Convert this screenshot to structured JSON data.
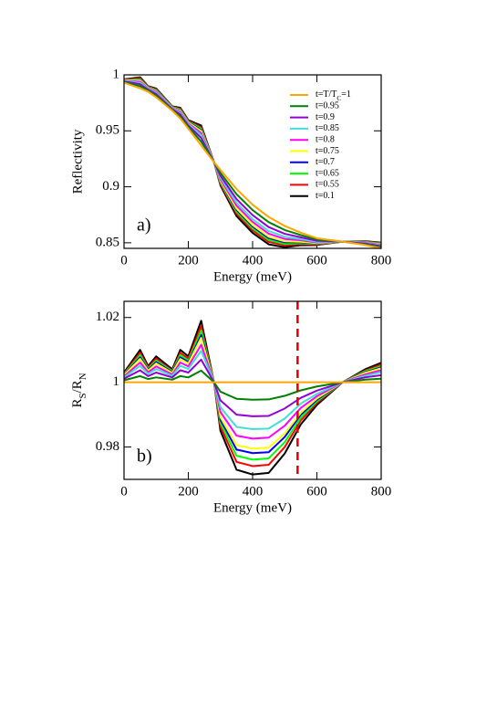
{
  "chart_data": [
    {
      "type": "line",
      "annotation": "a)",
      "xlabel": "Energy (meV)",
      "ylabel": "Reflectivity",
      "xlim": [
        0,
        800
      ],
      "ylim": [
        0.845,
        1
      ],
      "xticks": [
        0,
        200,
        400,
        600,
        800
      ],
      "yticks": [
        0.85,
        0.9,
        0.95,
        1
      ],
      "legend": "upper right",
      "x": [
        0,
        50,
        75,
        100,
        150,
        175,
        200,
        240,
        280,
        300,
        350,
        400,
        450,
        500,
        550,
        600,
        680,
        750,
        800
      ],
      "series": [
        {
          "name": [
            "t=T/T",
            "C",
            "=1"
          ],
          "color": "#ffa500",
          "values": [
            0.993,
            0.988,
            0.985,
            0.98,
            0.968,
            0.961,
            0.952,
            0.937,
            0.922,
            0.915,
            0.898,
            0.884,
            0.873,
            0.865,
            0.859,
            0.854,
            0.851,
            0.848,
            0.845
          ]
        },
        {
          "name": "t=0.95",
          "color": "#008000",
          "values": [
            0.9936,
            0.9899,
            0.9859,
            0.9815,
            0.9687,
            0.9628,
            0.9534,
            0.9404,
            0.922,
            0.9124,
            0.8934,
            0.8792,
            0.8684,
            0.8614,
            0.8569,
            0.8529,
            0.851,
            0.8486,
            0.846
          ]
        },
        {
          "name": "t=0.9",
          "color": "#9400d3",
          "values": [
            0.9941,
            0.9917,
            0.9868,
            0.9829,
            0.9694,
            0.9646,
            0.9548,
            0.9436,
            0.922,
            0.9099,
            0.889,
            0.8747,
            0.864,
            0.858,
            0.8549,
            0.8518,
            0.851,
            0.8493,
            0.8469
          ]
        },
        {
          "name": "t=0.85",
          "color": "#40e0d0",
          "values": [
            0.9945,
            0.993,
            0.9875,
            0.984,
            0.97,
            0.9659,
            0.9559,
            0.9461,
            0.922,
            0.908,
            0.8857,
            0.8711,
            0.8606,
            0.8553,
            0.8533,
            0.8509,
            0.851,
            0.8497,
            0.8476
          ]
        },
        {
          "name": "t=0.8",
          "color": "#ff00ff",
          "values": [
            0.9948,
            0.994,
            0.988,
            0.9848,
            0.9704,
            0.9669,
            0.9566,
            0.9479,
            0.922,
            0.9066,
            0.8832,
            0.8686,
            0.8581,
            0.8534,
            0.8522,
            0.8503,
            0.851,
            0.8501,
            0.8481
          ]
        },
        {
          "name": "t=0.75",
          "color": "#ffff00",
          "values": [
            0.9952,
            0.9951,
            0.9885,
            0.9856,
            0.9708,
            0.9679,
            0.9575,
            0.9498,
            0.922,
            0.9051,
            0.8806,
            0.8659,
            0.8554,
            0.8513,
            0.8509,
            0.8497,
            0.851,
            0.8504,
            0.8487
          ]
        },
        {
          "name": "t=0.7",
          "color": "#0000ff",
          "values": [
            0.9953,
            0.9956,
            0.9888,
            0.986,
            0.971,
            0.9684,
            0.9579,
            0.9507,
            0.922,
            0.9045,
            0.8794,
            0.8646,
            0.8542,
            0.8504,
            0.8504,
            0.8494,
            0.851,
            0.8506,
            0.8489
          ]
        },
        {
          "name": "t=0.65",
          "color": "#00ff00",
          "values": [
            0.9955,
            0.9963,
            0.9891,
            0.9866,
            0.9713,
            0.9691,
            0.9584,
            0.952,
            0.922,
            0.9035,
            0.8777,
            0.8628,
            0.8525,
            0.849,
            0.8496,
            0.849,
            0.851,
            0.8509,
            0.8493
          ]
        },
        {
          "name": "t=0.55",
          "color": "#ff0000",
          "values": [
            0.9957,
            0.997,
            0.9895,
            0.9871,
            0.9715,
            0.9697,
            0.9589,
            0.9532,
            0.922,
            0.9025,
            0.876,
            0.8611,
            0.8508,
            0.8477,
            0.8488,
            0.8485,
            0.851,
            0.8511,
            0.8496
          ]
        },
        {
          "name": "t=0.1",
          "color": "#000000",
          "values": [
            0.996,
            0.9979,
            0.9899,
            0.9878,
            0.9719,
            0.9706,
            0.9596,
            0.9548,
            0.922,
            0.9013,
            0.8738,
            0.8588,
            0.8486,
            0.846,
            0.8478,
            0.848,
            0.851,
            0.8514,
            0.8501
          ]
        }
      ]
    },
    {
      "type": "line",
      "annotation": "b)",
      "xlabel": "Energy (meV)",
      "ylabel": [
        "R",
        "S",
        "/R",
        "N"
      ],
      "xlim": [
        0,
        800
      ],
      "ylim": [
        0.97,
        1.025
      ],
      "xticks": [
        0,
        200,
        400,
        600,
        800
      ],
      "yticks": [
        0.98,
        1,
        1.02
      ],
      "vline": 540,
      "vline_color": "#e00000",
      "x": [
        0,
        50,
        75,
        100,
        150,
        175,
        200,
        240,
        280,
        300,
        350,
        400,
        450,
        500,
        550,
        600,
        680,
        750,
        800
      ],
      "series": [
        {
          "color": "#ffa500",
          "values": [
            1,
            1,
            1,
            1,
            1,
            1,
            1,
            1,
            1,
            1,
            1,
            1,
            1,
            1,
            1,
            1,
            1,
            1,
            1
          ]
        },
        {
          "color": "#008000",
          "values": [
            1.0006,
            1.0019,
            1.001,
            1.0015,
            1.0008,
            1.0019,
            1.0015,
            1.0036,
            1,
            0.9971,
            0.9949,
            0.9946,
            0.9947,
            0.9958,
            0.9975,
            0.9987,
            1,
            1.0008,
            1.0011
          ]
        },
        {
          "color": "#9400d3",
          "values": [
            1.0011,
            1.0037,
            1.0019,
            1.003,
            1.0015,
            1.0037,
            1.003,
            1.007,
            1,
            0.9944,
            0.99,
            0.9895,
            0.9896,
            0.9919,
            0.9952,
            0.9974,
            1,
            1.0015,
            1.0022
          ]
        },
        {
          "color": "#40e0d0",
          "values": [
            1.0015,
            1.0051,
            1.0026,
            1.0041,
            1.002,
            1.0051,
            1.0041,
            1.0097,
            1,
            0.9923,
            0.9862,
            0.9855,
            0.9857,
            0.9888,
            0.9934,
            0.9964,
            1,
            1.002,
            1.0031
          ]
        },
        {
          "color": "#ff00ff",
          "values": [
            1.0018,
            1.0061,
            1.0031,
            1.0049,
            1.0024,
            1.0061,
            1.0049,
            1.0116,
            1,
            0.9908,
            0.9835,
            0.9826,
            0.9829,
            0.9866,
            0.9921,
            0.9957,
            1,
            1.0024,
            1.0037
          ]
        },
        {
          "color": "#ffff00",
          "values": [
            1.0022,
            1.0072,
            1.0036,
            1.0058,
            1.0029,
            1.0072,
            1.0058,
            1.0137,
            1,
            0.9892,
            0.9806,
            0.9795,
            0.9798,
            0.9842,
            0.9906,
            0.995,
            1,
            1.0029,
            1.0043
          ]
        },
        {
          "color": "#0000ff",
          "values": [
            1.0023,
            1.0077,
            1.0039,
            1.0062,
            1.0031,
            1.0077,
            1.0062,
            1.0146,
            1,
            0.9884,
            0.9792,
            0.9781,
            0.9784,
            0.9831,
            0.99,
            0.9946,
            1,
            1.0031,
            1.0046
          ]
        },
        {
          "color": "#00ff00",
          "values": [
            1.0025,
            1.0084,
            1.0042,
            1.0067,
            1.0034,
            1.0084,
            1.0067,
            1.016,
            1,
            0.9874,
            0.9773,
            0.9761,
            0.9765,
            0.9815,
            0.9891,
            0.9941,
            1,
            1.0034,
            1.005
          ]
        },
        {
          "color": "#ff0000",
          "values": [
            1.0027,
            1.0091,
            1.0046,
            1.0073,
            1.0036,
            1.0091,
            1.0073,
            1.0173,
            1,
            0.9863,
            0.9754,
            0.9741,
            0.9745,
            0.98,
            0.9882,
            0.9936,
            1,
            1.0036,
            1.0055
          ]
        },
        {
          "color": "#000000",
          "values": [
            1.003,
            1.01,
            1.005,
            1.008,
            1.004,
            1.01,
            1.008,
            1.019,
            1,
            0.985,
            0.973,
            0.9715,
            0.972,
            0.978,
            0.987,
            0.993,
            1,
            1.004,
            1.006
          ]
        }
      ]
    }
  ]
}
